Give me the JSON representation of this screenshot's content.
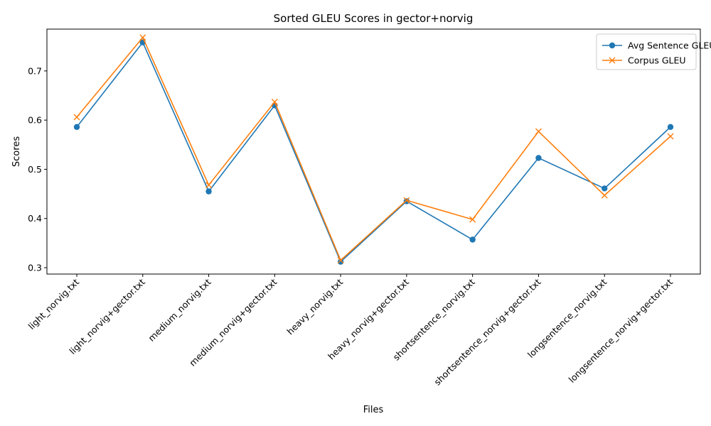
{
  "chart_data": {
    "type": "line",
    "title": "Sorted GLEU Scores in gector+norvig",
    "xlabel": "Files",
    "ylabel": "Scores",
    "categories": [
      "light_norvig.txt",
      "light_norvig+gector.txt",
      "medium_norvig.txt",
      "medium_norvig+gector.txt",
      "heavy_norvig.txt",
      "heavy_norvig+gector.txt",
      "shortsentence_norvig.txt",
      "shortsentence_norvig+gector.txt",
      "longsentence_norvig.txt",
      "longsentence_norvig+gector.txt"
    ],
    "series": [
      {
        "name": "Avg Sentence GLEU",
        "color": "#1f77b4",
        "marker": "circle",
        "values": [
          0.586,
          0.758,
          0.455,
          0.63,
          0.312,
          0.435,
          0.357,
          0.523,
          0.461,
          0.586
        ]
      },
      {
        "name": "Corpus GLEU",
        "color": "#ff7f0e",
        "marker": "x",
        "values": [
          0.606,
          0.768,
          0.468,
          0.637,
          0.315,
          0.437,
          0.398,
          0.577,
          0.447,
          0.567
        ]
      }
    ],
    "yticks": [
      "0.3",
      "0.4",
      "0.5",
      "0.6",
      "0.7"
    ],
    "ylim": [
      0.287,
      0.785
    ],
    "grid": false,
    "legend": "top-right"
  }
}
